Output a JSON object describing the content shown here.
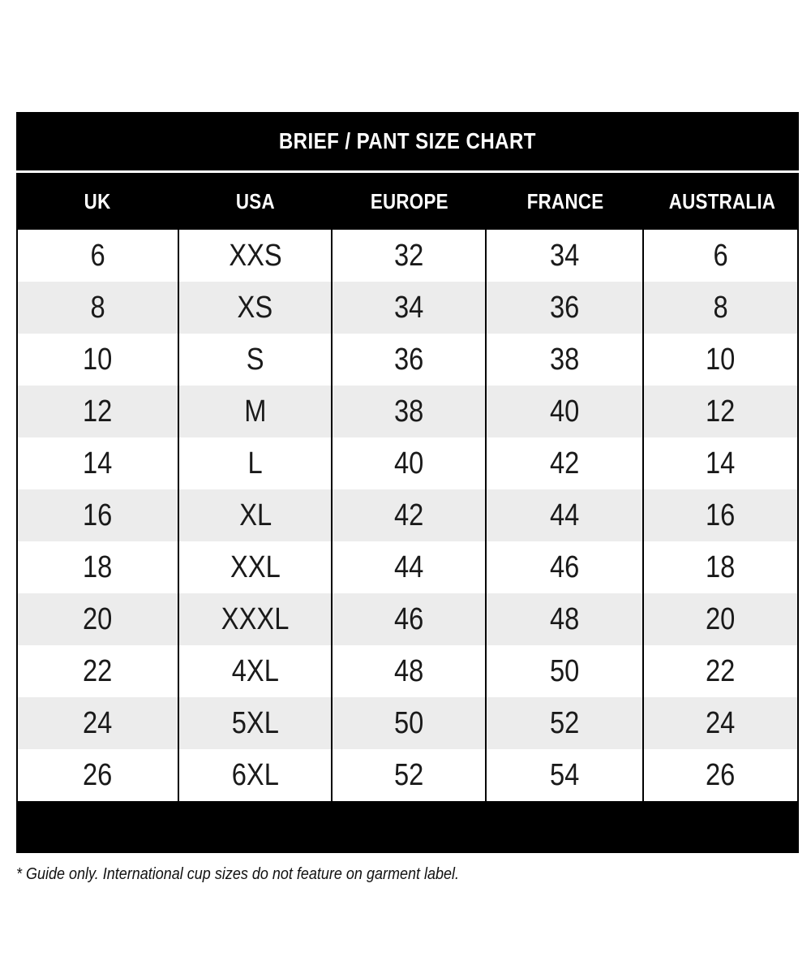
{
  "chart_data": {
    "type": "table",
    "title": "BRIEF / PANT SIZE CHART",
    "columns": [
      "UK",
      "USA",
      "EUROPE",
      "FRANCE",
      "AUSTRALIA"
    ],
    "rows": [
      [
        "6",
        "XXS",
        "32",
        "34",
        "6"
      ],
      [
        "8",
        "XS",
        "34",
        "36",
        "8"
      ],
      [
        "10",
        "S",
        "36",
        "38",
        "10"
      ],
      [
        "12",
        "M",
        "38",
        "40",
        "12"
      ],
      [
        "14",
        "L",
        "40",
        "42",
        "14"
      ],
      [
        "16",
        "XL",
        "42",
        "44",
        "16"
      ],
      [
        "18",
        "XXL",
        "44",
        "46",
        "18"
      ],
      [
        "20",
        "XXXL",
        "46",
        "48",
        "20"
      ],
      [
        "22",
        "4XL",
        "48",
        "50",
        "22"
      ],
      [
        "24",
        "5XL",
        "50",
        "52",
        "24"
      ],
      [
        "26",
        "6XL",
        "52",
        "54",
        "26"
      ]
    ],
    "layout_hints": {
      "row_alternating": true,
      "header_style": "black bar, white bold text",
      "grid": "vertical dividers only"
    }
  },
  "footnote": "* Guide only. International cup sizes do not feature on garment label.",
  "colors": {
    "bar_background": "#000000",
    "bar_text": "#ffffff",
    "row_white": "#ffffff",
    "row_alt": "#ececec",
    "body_text": "#1a1a1a",
    "divider": "#000000"
  }
}
